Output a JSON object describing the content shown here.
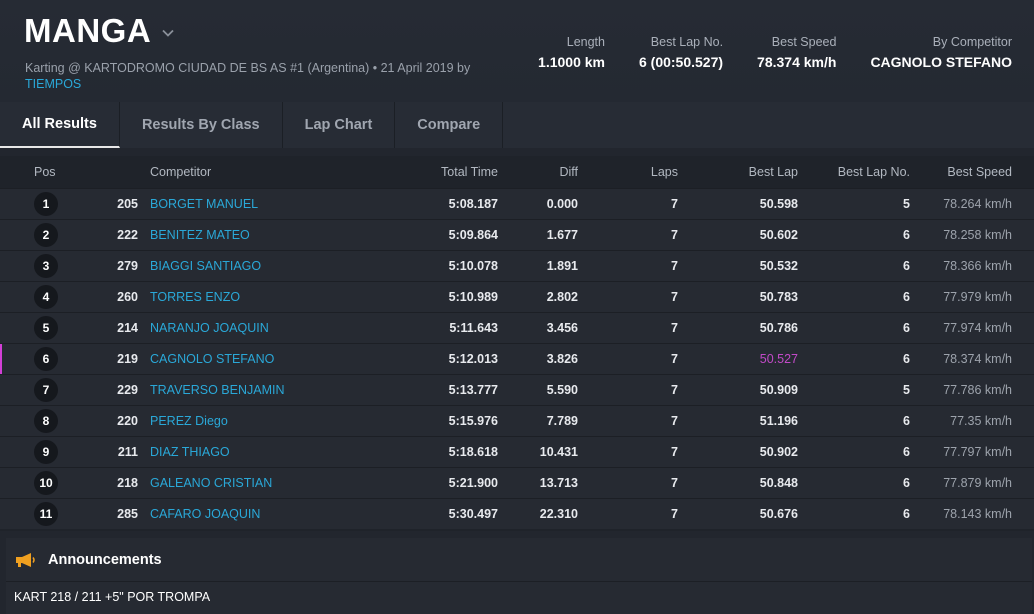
{
  "header": {
    "title": "MANGA",
    "subtitle": "Karting @ KARTODROMO CIUDAD DE BS AS #1 (Argentina) • 21 April 2019 by",
    "by": "TIEMPOS",
    "stats": [
      {
        "label": "Length",
        "value": "1.1000 km"
      },
      {
        "label": "Best Lap No.",
        "value": "6 (00:50.527)"
      },
      {
        "label": "Best Speed",
        "value": "78.374 km/h"
      },
      {
        "label": "By Competitor",
        "value": "CAGNOLO STEFANO"
      }
    ]
  },
  "tabs": [
    {
      "label": "All Results",
      "active": true
    },
    {
      "label": "Results By Class",
      "active": false
    },
    {
      "label": "Lap Chart",
      "active": false
    },
    {
      "label": "Compare",
      "active": false
    }
  ],
  "table": {
    "headers": {
      "pos": "Pos",
      "competitor": "Competitor",
      "total_time": "Total Time",
      "diff": "Diff",
      "laps": "Laps",
      "best_lap": "Best Lap",
      "best_lap_no": "Best Lap No.",
      "best_speed": "Best Speed"
    },
    "rows": [
      {
        "pos": "1",
        "num": "205",
        "name": "BORGET MANUEL",
        "total": "5:08.187",
        "diff": "0.000",
        "laps": "7",
        "best_lap": "50.598",
        "best_lap_no": "5",
        "speed": "78.264 km/h"
      },
      {
        "pos": "2",
        "num": "222",
        "name": "BENITEZ MATEO",
        "total": "5:09.864",
        "diff": "1.677",
        "laps": "7",
        "best_lap": "50.602",
        "best_lap_no": "6",
        "speed": "78.258 km/h"
      },
      {
        "pos": "3",
        "num": "279",
        "name": "BIAGGI SANTIAGO",
        "total": "5:10.078",
        "diff": "1.891",
        "laps": "7",
        "best_lap": "50.532",
        "best_lap_no": "6",
        "speed": "78.366 km/h"
      },
      {
        "pos": "4",
        "num": "260",
        "name": "TORRES ENZO",
        "total": "5:10.989",
        "diff": "2.802",
        "laps": "7",
        "best_lap": "50.783",
        "best_lap_no": "6",
        "speed": "77.979 km/h"
      },
      {
        "pos": "5",
        "num": "214",
        "name": "NARANJO JOAQUIN",
        "total": "5:11.643",
        "diff": "3.456",
        "laps": "7",
        "best_lap": "50.786",
        "best_lap_no": "6",
        "speed": "77.974 km/h"
      },
      {
        "pos": "6",
        "num": "219",
        "name": "CAGNOLO STEFANO",
        "total": "5:12.013",
        "diff": "3.826",
        "laps": "7",
        "best_lap": "50.527",
        "best_lap_no": "6",
        "speed": "78.374 km/h",
        "highlight": true
      },
      {
        "pos": "7",
        "num": "229",
        "name": "TRAVERSO BENJAMIN",
        "total": "5:13.777",
        "diff": "5.590",
        "laps": "7",
        "best_lap": "50.909",
        "best_lap_no": "5",
        "speed": "77.786 km/h"
      },
      {
        "pos": "8",
        "num": "220",
        "name": "PEREZ Diego",
        "total": "5:15.976",
        "diff": "7.789",
        "laps": "7",
        "best_lap": "51.196",
        "best_lap_no": "6",
        "speed": "77.35 km/h"
      },
      {
        "pos": "9",
        "num": "211",
        "name": "DIAZ THIAGO",
        "total": "5:18.618",
        "diff": "10.431",
        "laps": "7",
        "best_lap": "50.902",
        "best_lap_no": "6",
        "speed": "77.797 km/h"
      },
      {
        "pos": "10",
        "num": "218",
        "name": "GALEANO CRISTIAN",
        "total": "5:21.900",
        "diff": "13.713",
        "laps": "7",
        "best_lap": "50.848",
        "best_lap_no": "6",
        "speed": "77.879 km/h"
      },
      {
        "pos": "11",
        "num": "285",
        "name": "CAFARO JOAQUIN",
        "total": "5:30.497",
        "diff": "22.310",
        "laps": "7",
        "best_lap": "50.676",
        "best_lap_no": "6",
        "speed": "78.143 km/h"
      }
    ]
  },
  "announcements": {
    "title": "Announcements",
    "icon": "megaphone-icon",
    "text": "KART 218 / 211 +5\" POR TROMPA"
  },
  "colors": {
    "link": "#2aa8d8",
    "best_lap_highlight": "#c24ac8",
    "megaphone": "#f0a020"
  }
}
